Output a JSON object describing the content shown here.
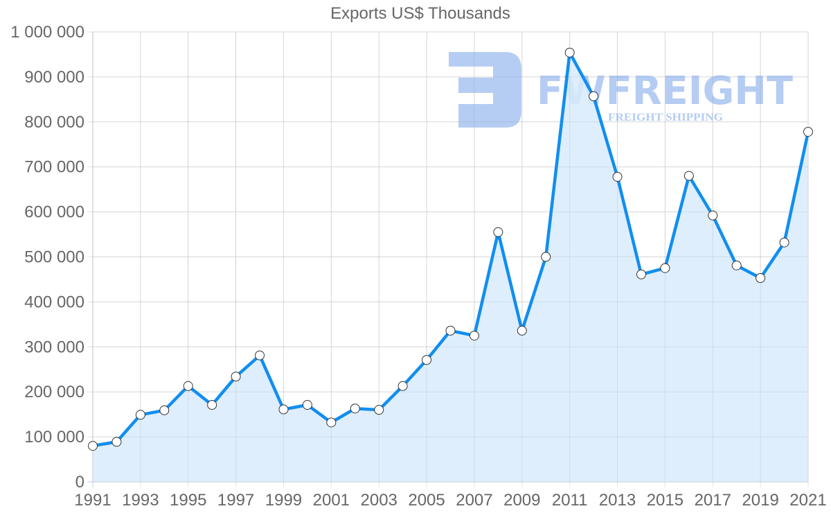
{
  "chart_data": {
    "type": "line",
    "title": "Exports US$ Thousands",
    "xlabel": "",
    "ylabel": "",
    "x": [
      1991,
      1992,
      1993,
      1994,
      1995,
      1996,
      1997,
      1998,
      1999,
      2000,
      2001,
      2002,
      2003,
      2004,
      2005,
      2006,
      2007,
      2008,
      2009,
      2010,
      2011,
      2012,
      2013,
      2014,
      2015,
      2016,
      2017,
      2018,
      2019,
      2020,
      2021
    ],
    "series": [
      {
        "name": "Exports US$ Thousands",
        "values": [
          80000,
          89000,
          149000,
          159000,
          213000,
          171000,
          234000,
          281000,
          161000,
          171000,
          132000,
          163000,
          160000,
          213000,
          271000,
          336000,
          325000,
          555000,
          336000,
          500000,
          954000,
          857000,
          678000,
          461000,
          475000,
          680000,
          592000,
          481000,
          453000,
          532000,
          778000
        ],
        "line_color": "#118ef0",
        "fill_color": "#d8ebfc",
        "marker_fill": "#ffffff",
        "marker_stroke": "#333333"
      }
    ],
    "ylim": [
      0,
      1000000
    ],
    "y_ticks": [
      "0",
      "100 000",
      "200 000",
      "300 000",
      "400 000",
      "500 000",
      "600 000",
      "700 000",
      "800 000",
      "900 000",
      "1 000 000"
    ],
    "x_tick_labels": [
      "1991",
      "1993",
      "1995",
      "1997",
      "1999",
      "2001",
      "2003",
      "2005",
      "2007",
      "2009",
      "2011",
      "2013",
      "2015",
      "2017",
      "2019",
      "2021"
    ],
    "grid": true,
    "legend": "none"
  },
  "watermark": {
    "brand": "FWFREIGHT",
    "tagline": "FREIGHT SHIPPING",
    "logo_icon": "fw-logo-icon",
    "color": "#a9c4f1"
  }
}
